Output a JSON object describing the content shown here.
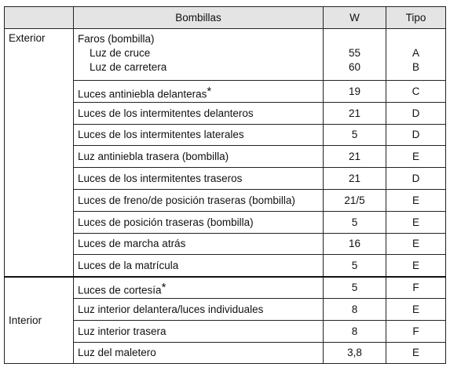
{
  "table": {
    "header": [
      "Bombillas",
      "W",
      "Tipo"
    ],
    "groups": [
      {
        "name": "Exterior",
        "rows": [
          {
            "label": "Faros (bombilla)",
            "subs": [
              {
                "label": "Luz de cruce",
                "w": "55",
                "tipo": "A"
              },
              {
                "label": "Luz de carretera",
                "w": "60",
                "tipo": "B"
              }
            ]
          },
          {
            "label": "Luces antiniebla delanteras",
            "note": "*",
            "w": "19",
            "tipo": "C"
          },
          {
            "label": "Luces de los intermitentes delanteros",
            "w": "21",
            "tipo": "D"
          },
          {
            "label": "Luces de los intermitentes laterales",
            "w": "5",
            "tipo": "D"
          },
          {
            "label": "Luz antiniebla trasera (bombilla)",
            "w": "21",
            "tipo": "E"
          },
          {
            "label": "Luces de los intermitentes traseros",
            "w": "21",
            "tipo": "D"
          },
          {
            "label": "Luces de freno/de posición traseras (bombilla)",
            "w": "21/5",
            "tipo": "E"
          },
          {
            "label": "Luces de posición traseras (bombilla)",
            "w": "5",
            "tipo": "E"
          },
          {
            "label": "Luces de marcha atrás",
            "w": "16",
            "tipo": "E"
          },
          {
            "label": "Luces de la matrícula",
            "w": "5",
            "tipo": "E"
          }
        ]
      },
      {
        "name": "Interior",
        "rows": [
          {
            "label": "Luces de cortesía",
            "note": "*",
            "w": "5",
            "tipo": "F"
          },
          {
            "label": "Luz interior delantera/luces individuales",
            "w": "8",
            "tipo": "E"
          },
          {
            "label": "Luz interior trasera",
            "w": "8",
            "tipo": "F"
          },
          {
            "label": "Luz del maletero",
            "w": "3,8",
            "tipo": "E"
          }
        ]
      }
    ]
  }
}
